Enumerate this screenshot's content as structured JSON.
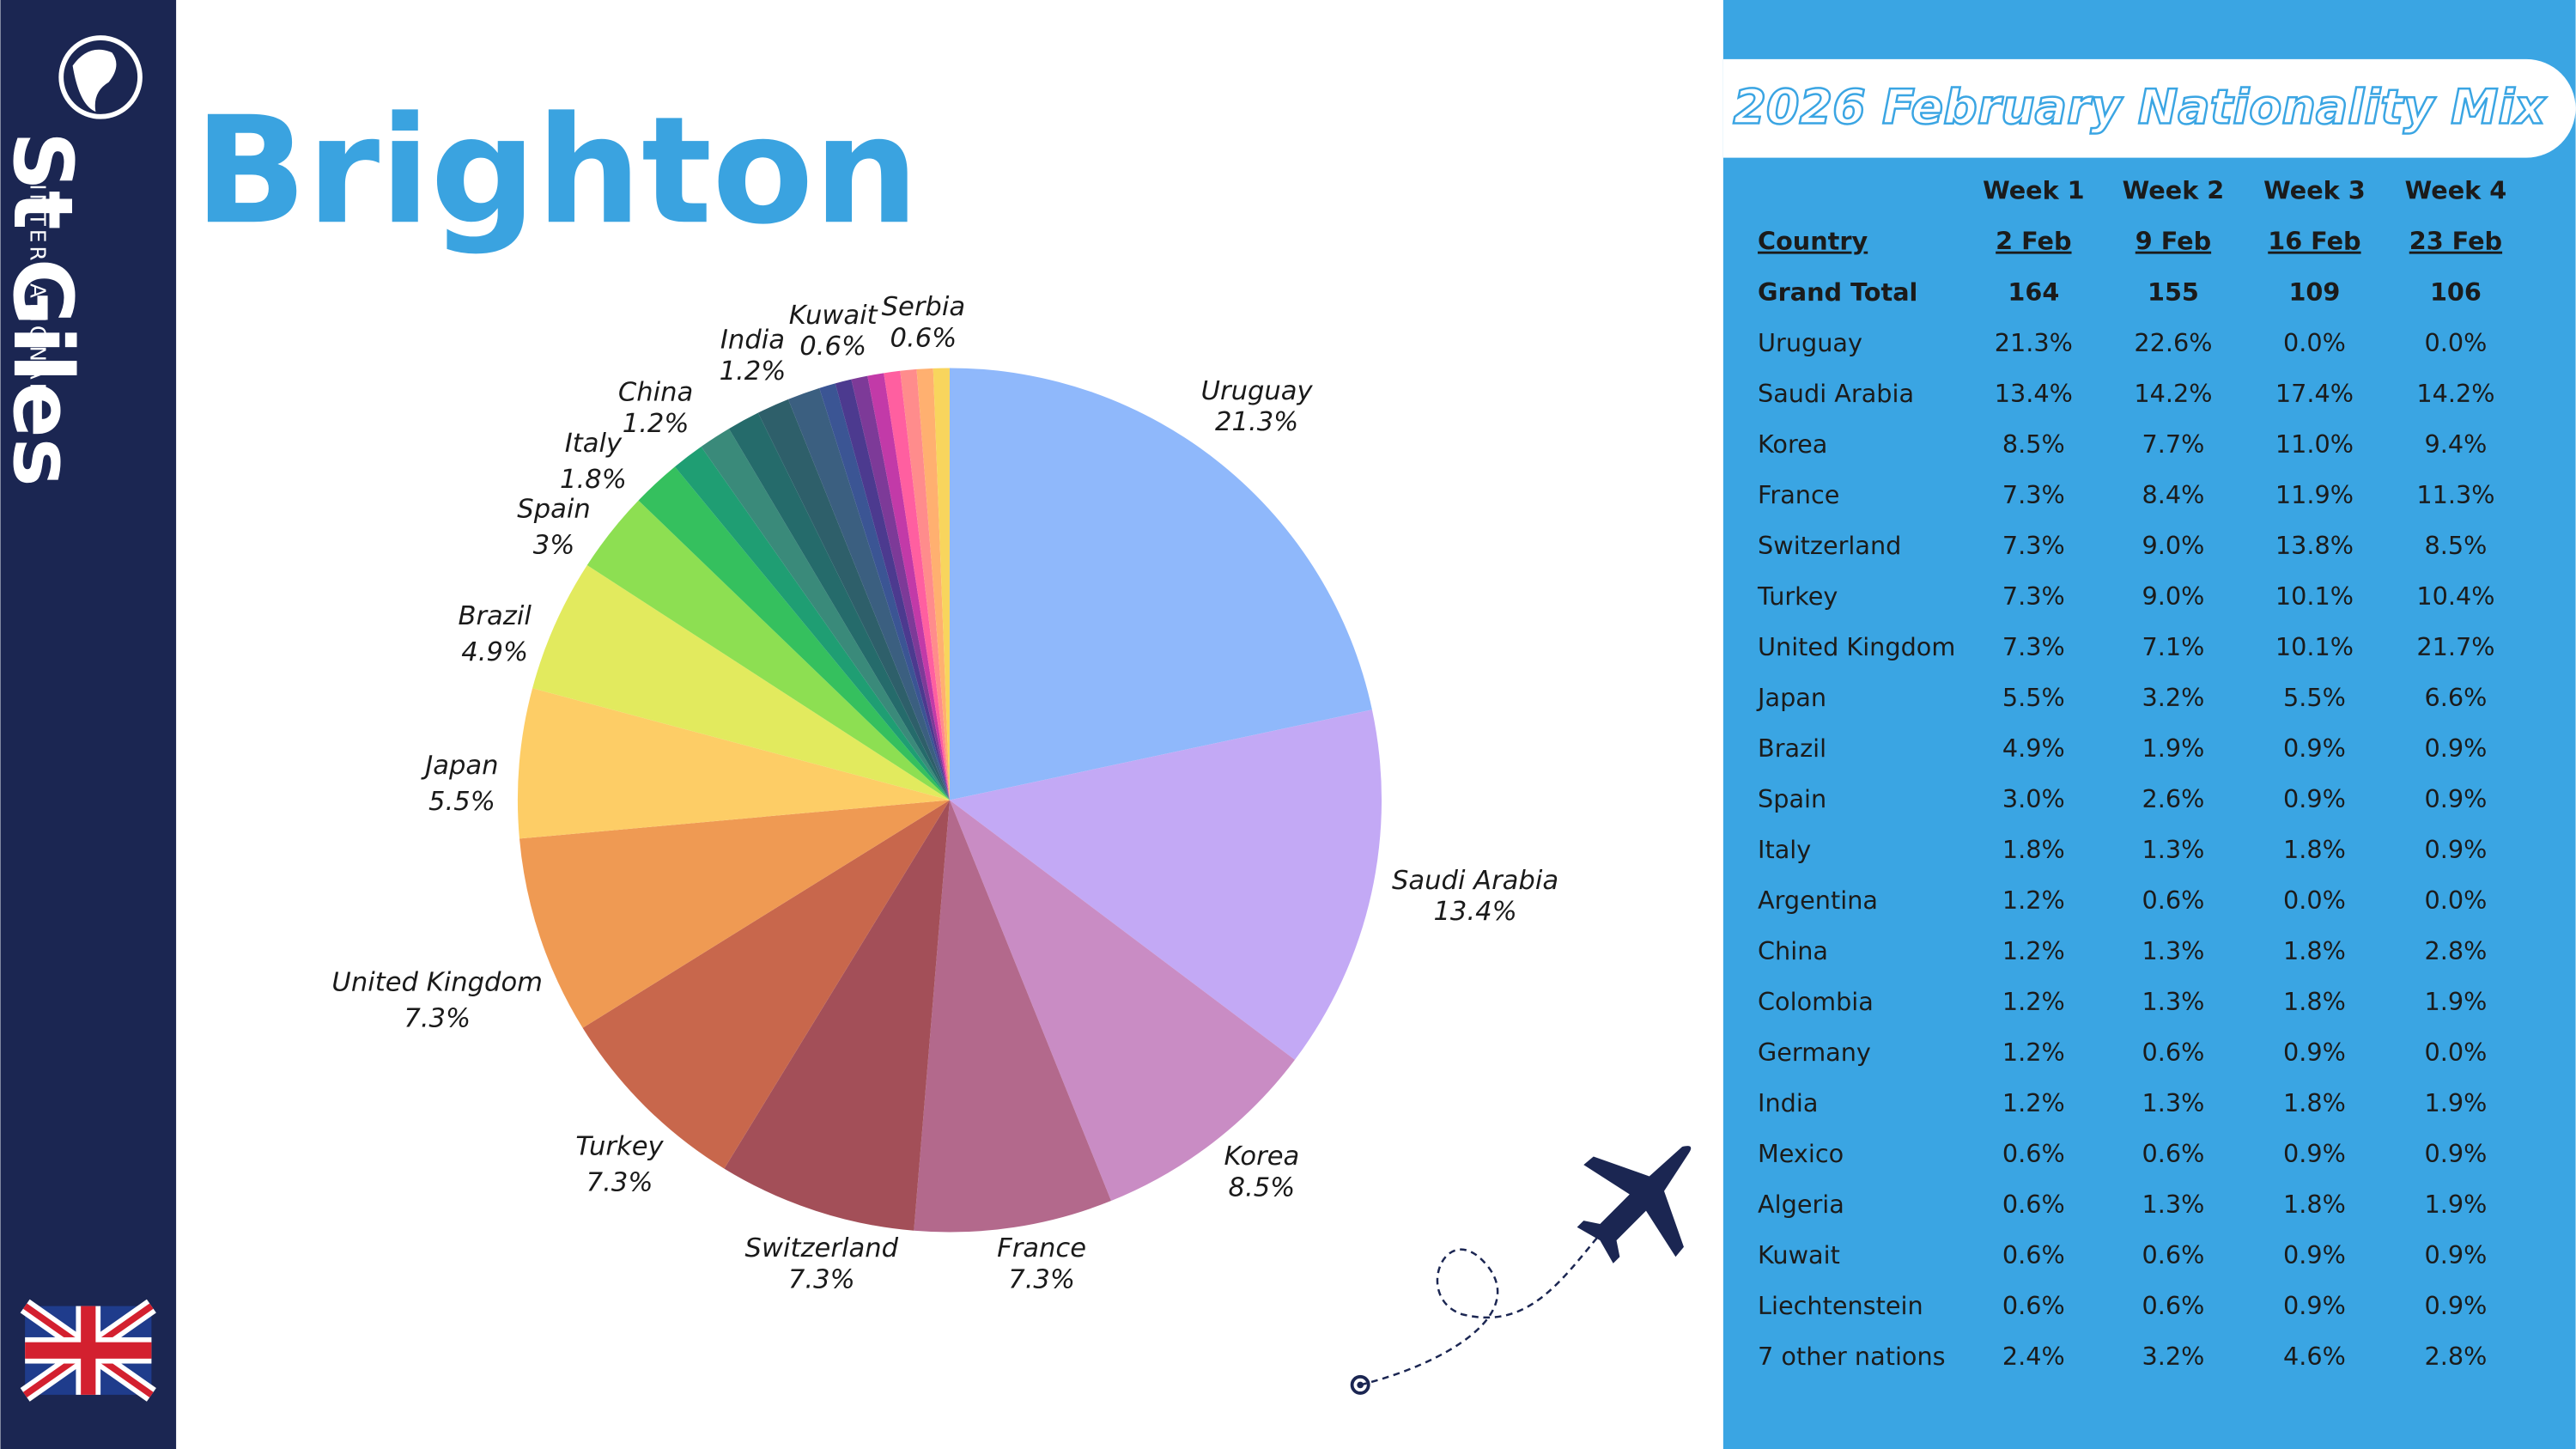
{
  "header": {
    "brand": "St Giles",
    "brand_sub": "INTERNATIONAL",
    "title": "Brighton"
  },
  "chart_data": {
    "type": "pie",
    "categories": [
      "Uruguay",
      "Saudi Arabia",
      "Korea",
      "France",
      "Switzerland",
      "Turkey",
      "United Kingdom",
      "Japan",
      "Brazil",
      "Spain",
      "Italy",
      null,
      "China",
      null,
      null,
      "India",
      null,
      null,
      "Kuwait",
      null,
      null,
      null,
      null,
      "Serbia"
    ],
    "values": [
      21.3,
      13.4,
      8.5,
      7.3,
      7.3,
      7.3,
      7.3,
      5.5,
      4.9,
      3,
      1.8,
      1.2,
      1.2,
      1.2,
      1.2,
      1.2,
      0.6,
      0.6,
      0.6,
      0.6,
      0.6,
      0.6,
      0.6,
      0.6
    ],
    "value_labels": [
      "21.3%",
      "13.4%",
      "8.5%",
      "7.3%",
      "7.3%",
      "7.3%",
      "7.3%",
      "5.5%",
      "4.9%",
      "3%",
      "1.8%",
      null,
      "1.2%",
      null,
      null,
      "1.2%",
      null,
      null,
      "0.6%",
      null,
      null,
      null,
      null,
      "0.6%"
    ],
    "colors": [
      "#8fb8fb",
      "#c3a9f5",
      "#c98cc4",
      "#b3698c",
      "#a34f58",
      "#c8674c",
      "#ef9a53",
      "#fdcd66",
      "#e2ea5e",
      "#8ddf52",
      "#35c05e",
      "#1f9e73",
      "#3a8a7a",
      "#256b6b",
      "#2e5f6a",
      "#3b5f80",
      "#3b5594",
      "#4c3a8f",
      "#7d3a98",
      "#c23aa8",
      "#ff5fa0",
      "#ff8c8c",
      "#ffb070",
      "#f8d55d"
    ]
  },
  "table": {
    "title": "2026 February Nationality Mix",
    "weeks": [
      "Week 1",
      "Week 2",
      "Week 3",
      "Week 4"
    ],
    "header": [
      "Country",
      "2 Feb",
      "9 Feb",
      "16 Feb",
      "23 Feb"
    ],
    "rows": [
      [
        "Grand Total",
        "164",
        "155",
        "109",
        "106"
      ],
      [
        "Uruguay",
        "21.3%",
        "22.6%",
        "0.0%",
        "0.0%"
      ],
      [
        "Saudi Arabia",
        "13.4%",
        "14.2%",
        "17.4%",
        "14.2%"
      ],
      [
        "Korea",
        "8.5%",
        "7.7%",
        "11.0%",
        "9.4%"
      ],
      [
        "France",
        "7.3%",
        "8.4%",
        "11.9%",
        "11.3%"
      ],
      [
        "Switzerland",
        "7.3%",
        "9.0%",
        "13.8%",
        "8.5%"
      ],
      [
        "Turkey",
        "7.3%",
        "9.0%",
        "10.1%",
        "10.4%"
      ],
      [
        "United Kingdom",
        "7.3%",
        "7.1%",
        "10.1%",
        "21.7%"
      ],
      [
        "Japan",
        "5.5%",
        "3.2%",
        "5.5%",
        "6.6%"
      ],
      [
        "Brazil",
        "4.9%",
        "1.9%",
        "0.9%",
        "0.9%"
      ],
      [
        "Spain",
        "3.0%",
        "2.6%",
        "0.9%",
        "0.9%"
      ],
      [
        "Italy",
        "1.8%",
        "1.3%",
        "1.8%",
        "0.9%"
      ],
      [
        "Argentina",
        "1.2%",
        "0.6%",
        "0.0%",
        "0.0%"
      ],
      [
        "China",
        "1.2%",
        "1.3%",
        "1.8%",
        "2.8%"
      ],
      [
        "Colombia",
        "1.2%",
        "1.3%",
        "1.8%",
        "1.9%"
      ],
      [
        "Germany",
        "1.2%",
        "0.6%",
        "0.9%",
        "0.0%"
      ],
      [
        "India",
        "1.2%",
        "1.3%",
        "1.8%",
        "1.9%"
      ],
      [
        "Mexico",
        "0.6%",
        "0.6%",
        "0.9%",
        "0.9%"
      ],
      [
        "Algeria",
        "0.6%",
        "1.3%",
        "1.8%",
        "1.9%"
      ],
      [
        "Kuwait",
        "0.6%",
        "0.6%",
        "0.9%",
        "0.9%"
      ],
      [
        "Liechtenstein",
        "0.6%",
        "0.6%",
        "0.9%",
        "0.9%"
      ],
      [
        "7 other nations",
        "2.4%",
        "3.2%",
        "4.6%",
        "2.8%"
      ]
    ]
  }
}
